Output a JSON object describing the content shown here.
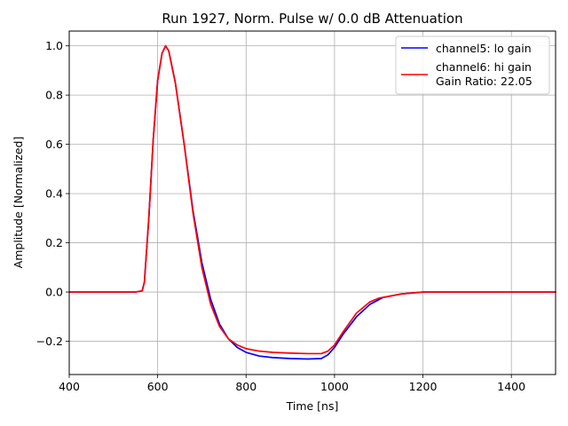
{
  "chart_data": {
    "type": "line",
    "title": "Run 1927, Norm. Pulse w/ 0.0 dB Attenuation",
    "xlabel": "Time [ns]",
    "ylabel": "Amplitude [Normalized]",
    "xlim": [
      400,
      1500
    ],
    "ylim": [
      -0.335,
      1.06
    ],
    "xticks": [
      400,
      600,
      800,
      1000,
      1200,
      1400
    ],
    "yticks": [
      -0.2,
      0.0,
      0.2,
      0.4,
      0.6,
      0.8,
      1.0
    ],
    "xtick_labels": [
      "400",
      "600",
      "800",
      "1000",
      "1200",
      "1400"
    ],
    "ytick_labels": [
      "−0.2",
      "0.0",
      "0.2",
      "0.4",
      "0.6",
      "0.8",
      "1.0"
    ],
    "grid": true,
    "legend_position": "top-right",
    "series": [
      {
        "name": "channel5: lo gain",
        "color": "#0000ff",
        "x": [
          400,
          550,
          565,
          570,
          580,
          590,
          600,
          610,
          618,
          625,
          640,
          660,
          680,
          700,
          720,
          740,
          760,
          780,
          800,
          830,
          860,
          900,
          940,
          970,
          985,
          1000,
          1020,
          1050,
          1080,
          1110,
          1150,
          1200,
          1300,
          1500
        ],
        "y": [
          0,
          0,
          0.005,
          0.04,
          0.3,
          0.62,
          0.86,
          0.97,
          1.0,
          0.98,
          0.85,
          0.6,
          0.33,
          0.12,
          -0.03,
          -0.13,
          -0.19,
          -0.225,
          -0.245,
          -0.26,
          -0.266,
          -0.27,
          -0.272,
          -0.27,
          -0.255,
          -0.225,
          -0.17,
          -0.1,
          -0.05,
          -0.022,
          -0.008,
          0,
          0,
          0
        ]
      },
      {
        "name": "channel6: hi gain\nGain Ratio: 22.05",
        "color": "#ff0000",
        "x": [
          400,
          550,
          565,
          570,
          580,
          590,
          600,
          610,
          618,
          625,
          640,
          660,
          680,
          700,
          720,
          740,
          760,
          780,
          800,
          830,
          860,
          900,
          940,
          970,
          985,
          1000,
          1020,
          1050,
          1080,
          1100,
          1150,
          1200,
          1300,
          1500
        ],
        "y": [
          0,
          0,
          0.005,
          0.04,
          0.3,
          0.62,
          0.86,
          0.97,
          1.0,
          0.98,
          0.85,
          0.6,
          0.32,
          0.1,
          -0.05,
          -0.14,
          -0.19,
          -0.215,
          -0.23,
          -0.24,
          -0.245,
          -0.248,
          -0.25,
          -0.25,
          -0.24,
          -0.215,
          -0.16,
          -0.085,
          -0.04,
          -0.025,
          -0.008,
          0,
          0,
          0
        ]
      }
    ],
    "legend": [
      {
        "label": "channel5: lo gain"
      },
      {
        "label": "channel6: hi gain",
        "label2": "Gain Ratio: 22.05"
      }
    ]
  }
}
